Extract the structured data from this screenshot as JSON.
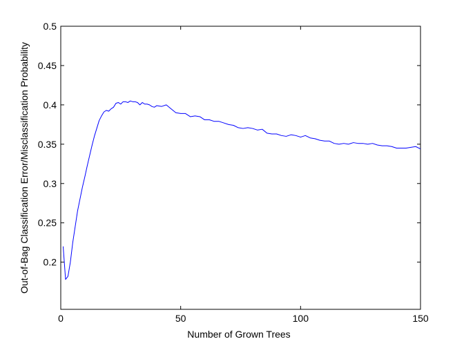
{
  "chart_data": {
    "type": "line",
    "title": "",
    "xlabel": "Number of Grown Trees",
    "ylabel": "Out-of-Bag Classification Error/Misclassification Probability",
    "xlim": [
      0,
      150
    ],
    "ylim": [
      0.14,
      0.5
    ],
    "xticks": [
      0,
      50,
      100,
      150
    ],
    "yticks": [
      0.2,
      0.25,
      0.3,
      0.35,
      0.4,
      0.45,
      0.5
    ],
    "xtick_labels": [
      "0",
      "50",
      "100",
      "150"
    ],
    "ytick_labels": [
      "0.2",
      "0.25",
      "0.3",
      "0.35",
      "0.4",
      "0.45",
      "0.5"
    ],
    "grid": false,
    "legend": "none",
    "series": [
      {
        "color": "#0000ff",
        "x": [
          1,
          2,
          3,
          4,
          5,
          6,
          7,
          8,
          9,
          10,
          11,
          12,
          13,
          14,
          15,
          16,
          17,
          18,
          19,
          20,
          21,
          22,
          23,
          24,
          25,
          26,
          27,
          28,
          29,
          30,
          31,
          32,
          33,
          34,
          35,
          36,
          37,
          38,
          39,
          40,
          42,
          44,
          46,
          48,
          50,
          52,
          54,
          56,
          58,
          60,
          62,
          64,
          66,
          68,
          70,
          72,
          74,
          76,
          78,
          80,
          82,
          84,
          86,
          88,
          90,
          92,
          94,
          96,
          98,
          100,
          102,
          104,
          106,
          108,
          110,
          112,
          114,
          116,
          118,
          120,
          122,
          124,
          126,
          128,
          130,
          132,
          134,
          136,
          138,
          140,
          142,
          144,
          146,
          148,
          150
        ],
        "y": [
          0.22,
          0.178,
          0.182,
          0.2,
          0.225,
          0.245,
          0.265,
          0.28,
          0.295,
          0.308,
          0.322,
          0.335,
          0.348,
          0.36,
          0.37,
          0.38,
          0.386,
          0.391,
          0.393,
          0.392,
          0.395,
          0.397,
          0.402,
          0.403,
          0.401,
          0.404,
          0.404,
          0.403,
          0.405,
          0.404,
          0.404,
          0.403,
          0.4,
          0.403,
          0.401,
          0.401,
          0.4,
          0.398,
          0.397,
          0.399,
          0.398,
          0.4,
          0.395,
          0.39,
          0.389,
          0.389,
          0.385,
          0.386,
          0.385,
          0.381,
          0.381,
          0.379,
          0.379,
          0.377,
          0.375,
          0.374,
          0.371,
          0.37,
          0.371,
          0.37,
          0.368,
          0.369,
          0.364,
          0.363,
          0.363,
          0.361,
          0.36,
          0.362,
          0.361,
          0.359,
          0.361,
          0.358,
          0.357,
          0.355,
          0.354,
          0.354,
          0.351,
          0.35,
          0.351,
          0.35,
          0.352,
          0.351,
          0.351,
          0.35,
          0.351,
          0.349,
          0.348,
          0.348,
          0.347,
          0.345,
          0.345,
          0.345,
          0.346,
          0.347,
          0.344
        ]
      }
    ]
  }
}
